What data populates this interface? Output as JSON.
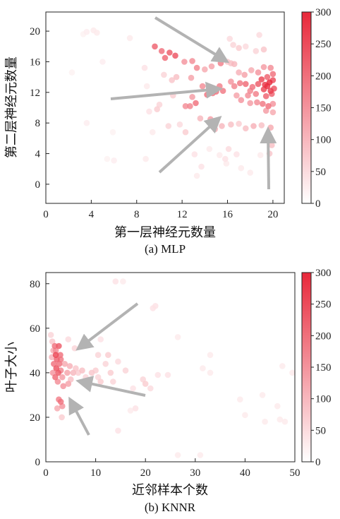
{
  "chart_data": [
    {
      "type": "scatter",
      "caption": "(a) MLP",
      "xlabel": "第一层神经元数量",
      "ylabel": "第二层神经元数量",
      "xlim": [
        0,
        21
      ],
      "ylim": [
        -2.5,
        22.5
      ],
      "xticks": [
        0,
        4,
        8,
        12,
        16,
        20
      ],
      "yticks": [
        0,
        4,
        8,
        12,
        16,
        20
      ],
      "colorbar": {
        "range": [
          0,
          300
        ],
        "ticks": [
          0,
          50,
          100,
          150,
          200,
          250,
          300
        ],
        "colormap": "white-to-red",
        "max_color": "#e8283a"
      },
      "points": [
        [
          3.3,
          19.6,
          20
        ],
        [
          3.6,
          19.9,
          25
        ],
        [
          4.2,
          20.1,
          30
        ],
        [
          4.5,
          19.8,
          30
        ],
        [
          2.3,
          14.6,
          20
        ],
        [
          5.0,
          16.0,
          25
        ],
        [
          3.6,
          8.0,
          25
        ],
        [
          5.9,
          6.8,
          20
        ],
        [
          5.4,
          3.3,
          20
        ],
        [
          6.0,
          3.1,
          25
        ],
        [
          7.4,
          19.1,
          30
        ],
        [
          8.7,
          15.2,
          40
        ],
        [
          8.9,
          12.8,
          30
        ],
        [
          9.1,
          9.5,
          40
        ],
        [
          9.8,
          9.8,
          70
        ],
        [
          9.4,
          6.8,
          30
        ],
        [
          8.8,
          3.3,
          30
        ],
        [
          9.6,
          18.0,
          220
        ],
        [
          10.2,
          17.4,
          200
        ],
        [
          10.5,
          16.5,
          210
        ],
        [
          10.9,
          17.2,
          230
        ],
        [
          11.4,
          16.8,
          240
        ],
        [
          12.2,
          16.0,
          150
        ],
        [
          12.9,
          16.1,
          160
        ],
        [
          13.3,
          15.2,
          170
        ],
        [
          14.0,
          15.0,
          120
        ],
        [
          14.6,
          15.4,
          130
        ],
        [
          15.4,
          15.8,
          180
        ],
        [
          10.4,
          14.3,
          60
        ],
        [
          11.1,
          13.6,
          80
        ],
        [
          11.5,
          14.0,
          90
        ],
        [
          12.8,
          13.9,
          130
        ],
        [
          13.8,
          12.8,
          160
        ],
        [
          14.2,
          11.7,
          200
        ],
        [
          14.7,
          11.9,
          190
        ],
        [
          15.0,
          12.1,
          200
        ],
        [
          15.6,
          12.2,
          190
        ],
        [
          15.3,
          12.8,
          180
        ],
        [
          12.3,
          10.2,
          160
        ],
        [
          12.7,
          10.2,
          170
        ],
        [
          13.2,
          10.6,
          200
        ],
        [
          12.9,
          11.4,
          140
        ],
        [
          10.0,
          10.4,
          60
        ],
        [
          11.2,
          11.6,
          70
        ],
        [
          10.8,
          7.6,
          60
        ],
        [
          11.8,
          7.8,
          50
        ],
        [
          12.3,
          6.8,
          70
        ],
        [
          13.6,
          8.6,
          100
        ],
        [
          14.5,
          8.5,
          140
        ],
        [
          14.9,
          7.2,
          110
        ],
        [
          15.5,
          7.6,
          100
        ],
        [
          13.1,
          3.9,
          40
        ],
        [
          13.7,
          2.3,
          40
        ],
        [
          13.3,
          1.1,
          30
        ],
        [
          14.4,
          4.6,
          30
        ],
        [
          15.3,
          3.8,
          30
        ],
        [
          15.8,
          3.3,
          40
        ],
        [
          16.2,
          19.0,
          50
        ],
        [
          16.5,
          18.2,
          60
        ],
        [
          17.0,
          17.8,
          70
        ],
        [
          17.6,
          18.0,
          50
        ],
        [
          18.5,
          17.4,
          60
        ],
        [
          19.2,
          17.6,
          80
        ],
        [
          18.8,
          19.5,
          50
        ],
        [
          16.0,
          16.0,
          80
        ],
        [
          16.3,
          15.8,
          90
        ],
        [
          16.6,
          15.7,
          100
        ],
        [
          17.0,
          14.6,
          110
        ],
        [
          17.5,
          14.3,
          130
        ],
        [
          18.1,
          14.9,
          120
        ],
        [
          18.7,
          14.6,
          150
        ],
        [
          19.2,
          15.3,
          140
        ],
        [
          19.8,
          15.2,
          160
        ],
        [
          16.3,
          13.4,
          150
        ],
        [
          16.6,
          12.8,
          170
        ],
        [
          17.1,
          13.2,
          190
        ],
        [
          17.6,
          13.1,
          210
        ],
        [
          18.2,
          12.7,
          200
        ],
        [
          18.7,
          13.1,
          230
        ],
        [
          19.0,
          13.7,
          260
        ],
        [
          19.3,
          13.0,
          280
        ],
        [
          19.5,
          12.8,
          290
        ],
        [
          19.7,
          13.3,
          300
        ],
        [
          19.8,
          12.2,
          270
        ],
        [
          20.0,
          13.6,
          250
        ],
        [
          20.1,
          12.5,
          240
        ],
        [
          19.5,
          14.0,
          220
        ],
        [
          19.2,
          12.4,
          260
        ],
        [
          19.9,
          11.8,
          220
        ],
        [
          20.0,
          14.4,
          200
        ],
        [
          19.4,
          11.5,
          220
        ],
        [
          18.5,
          11.8,
          180
        ],
        [
          18.0,
          12.2,
          170
        ],
        [
          17.8,
          11.6,
          160
        ],
        [
          16.8,
          11.6,
          130
        ],
        [
          17.2,
          11.0,
          150
        ],
        [
          18.0,
          10.6,
          140
        ],
        [
          18.6,
          10.7,
          160
        ],
        [
          19.1,
          10.5,
          190
        ],
        [
          19.6,
          10.2,
          200
        ],
        [
          20.0,
          10.5,
          150
        ],
        [
          19.4,
          9.6,
          140
        ],
        [
          20.0,
          9.4,
          120
        ],
        [
          16.3,
          7.8,
          90
        ],
        [
          17.0,
          7.9,
          70
        ],
        [
          17.6,
          7.3,
          90
        ],
        [
          18.3,
          7.6,
          110
        ],
        [
          19.0,
          7.7,
          90
        ],
        [
          19.8,
          7.4,
          120
        ],
        [
          19.5,
          6.2,
          100
        ],
        [
          19.9,
          5.1,
          90
        ],
        [
          19.7,
          4.0,
          80
        ],
        [
          16.1,
          4.6,
          50
        ],
        [
          16.8,
          3.9,
          40
        ],
        [
          17.2,
          2.1,
          30
        ],
        [
          18.0,
          1.5,
          30
        ],
        [
          18.9,
          3.8,
          30
        ],
        [
          15.9,
          2.7,
          30
        ]
      ]
    },
    {
      "type": "scatter",
      "caption": "(b) KNNR",
      "xlabel": "近邻样本个数",
      "ylabel": "叶子大小",
      "xlim": [
        0,
        50
      ],
      "ylim": [
        0,
        85
      ],
      "xticks": [
        0,
        10,
        20,
        30,
        40,
        50
      ],
      "yticks": [
        0,
        20,
        40,
        60,
        80
      ],
      "colorbar": {
        "range": [
          0,
          300
        ],
        "ticks": [
          0,
          50,
          100,
          150,
          200,
          250,
          300
        ],
        "colormap": "white-to-red",
        "max_color": "#e8283a"
      },
      "points": [
        [
          1.0,
          57,
          60
        ],
        [
          1.3,
          54,
          80
        ],
        [
          1.5,
          50,
          120
        ],
        [
          1.8,
          52,
          200
        ],
        [
          2.0,
          48,
          260
        ],
        [
          2.2,
          46,
          220
        ],
        [
          1.6,
          44,
          200
        ],
        [
          2.1,
          42,
          240
        ],
        [
          2.5,
          40,
          230
        ],
        [
          1.9,
          38,
          210
        ],
        [
          1.4,
          40,
          150
        ],
        [
          2.7,
          44,
          200
        ],
        [
          3.0,
          41,
          170
        ],
        [
          2.4,
          36,
          160
        ],
        [
          3.3,
          38,
          140
        ],
        [
          3.0,
          46,
          190
        ],
        [
          2.0,
          50,
          160
        ],
        [
          1.2,
          47,
          110
        ],
        [
          2.6,
          52,
          230
        ],
        [
          2.9,
          48,
          200
        ],
        [
          3.8,
          44,
          120
        ],
        [
          4.3,
          40,
          130
        ],
        [
          4.8,
          43,
          110
        ],
        [
          5.5,
          40,
          100
        ],
        [
          5.0,
          37,
          90
        ],
        [
          4.5,
          35,
          130
        ],
        [
          3.5,
          34,
          150
        ],
        [
          6.0,
          42,
          80
        ],
        [
          6.5,
          40,
          70
        ],
        [
          7.3,
          41,
          90
        ],
        [
          8.0,
          38,
          60
        ],
        [
          9.2,
          40,
          80
        ],
        [
          10.0,
          41,
          70
        ],
        [
          10.5,
          38,
          60
        ],
        [
          11.0,
          36,
          70
        ],
        [
          12.0,
          44,
          60
        ],
        [
          13.0,
          40,
          70
        ],
        [
          13.5,
          36,
          60
        ],
        [
          2.6,
          28,
          180
        ],
        [
          3.0,
          27,
          200
        ],
        [
          3.3,
          25,
          150
        ],
        [
          2.3,
          24,
          120
        ],
        [
          3.2,
          20,
          70
        ],
        [
          4.5,
          55,
          50
        ],
        [
          5.8,
          51,
          60
        ],
        [
          8.0,
          53,
          50
        ],
        [
          10.5,
          48,
          60
        ],
        [
          12.5,
          48,
          70
        ],
        [
          14.5,
          45,
          50
        ],
        [
          11.0,
          55,
          40
        ],
        [
          14.0,
          81,
          40
        ],
        [
          15.5,
          81,
          30
        ],
        [
          16.0,
          41,
          60
        ],
        [
          17.5,
          33,
          40
        ],
        [
          17.0,
          23,
          30
        ],
        [
          18.0,
          24,
          40
        ],
        [
          14.5,
          14,
          40
        ],
        [
          19.5,
          37,
          60
        ],
        [
          20.0,
          35,
          70
        ],
        [
          21.0,
          33,
          50
        ],
        [
          21.5,
          69,
          40
        ],
        [
          22.0,
          70,
          40
        ],
        [
          22.5,
          39,
          40
        ],
        [
          24.5,
          39,
          40
        ],
        [
          26.5,
          56,
          30
        ],
        [
          31.5,
          42,
          30
        ],
        [
          33.0,
          48,
          30
        ],
        [
          33.0,
          40,
          30
        ],
        [
          26.5,
          3,
          30
        ],
        [
          31.0,
          3,
          30
        ],
        [
          39.0,
          28,
          30
        ],
        [
          40.0,
          21,
          30
        ],
        [
          43.5,
          30,
          30
        ],
        [
          44.0,
          18,
          30
        ],
        [
          46.5,
          25,
          30
        ],
        [
          47.0,
          19,
          30
        ],
        [
          48.0,
          18,
          30
        ],
        [
          47.5,
          43,
          30
        ],
        [
          49.5,
          40,
          30
        ]
      ]
    }
  ]
}
